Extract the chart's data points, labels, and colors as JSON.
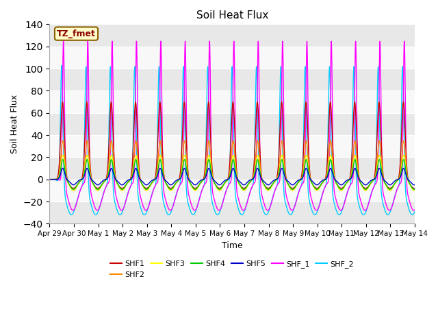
{
  "title": "Soil Heat Flux",
  "ylabel": "Soil Heat Flux",
  "xlabel": "Time",
  "ylim": [
    -40,
    140
  ],
  "series": {
    "SHF1": {
      "color": "#cc0000",
      "lw": 1.0
    },
    "SHF2": {
      "color": "#ff8800",
      "lw": 1.0
    },
    "SHF3": {
      "color": "#ffff00",
      "lw": 1.0
    },
    "SHF4": {
      "color": "#00cc00",
      "lw": 1.0
    },
    "SHF5": {
      "color": "#0000cc",
      "lw": 1.0
    },
    "SHF_1": {
      "color": "#ff00ff",
      "lw": 1.0
    },
    "SHF_2": {
      "color": "#00ccff",
      "lw": 1.0
    }
  },
  "legend_label": "TZ_fmet",
  "n_days": 15,
  "points_per_day": 288,
  "tick_labels": [
    "Apr 29",
    "Apr 30",
    "May 1",
    "May 2",
    "May 3",
    "May 4",
    "May 5",
    "May 6",
    "May 7",
    "May 8",
    "May 9",
    "May 10",
    "May 11",
    "May 12",
    "May 13",
    "May 14"
  ],
  "axes_bg": "#f0f0f0"
}
